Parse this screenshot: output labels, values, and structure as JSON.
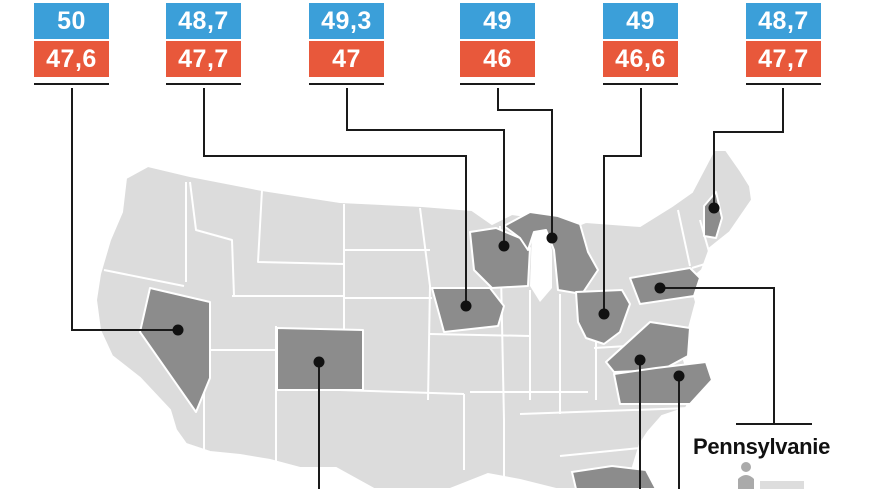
{
  "colors": {
    "blue": "#3b9fd9",
    "red": "#e8583b",
    "map_land": "#dcdcdc",
    "map_border": "#ffffff",
    "highlight_state": "#8c8c8c",
    "leader_line": "#1a1a1a"
  },
  "cards": [
    {
      "blue": "50",
      "red": "47,6"
    },
    {
      "blue": "48,7",
      "red": "47,7"
    },
    {
      "blue": "49,3",
      "red": "47"
    },
    {
      "blue": "49",
      "red": "46"
    },
    {
      "blue": "49",
      "red": "46,6"
    },
    {
      "blue": "48,7",
      "red": "47,7"
    }
  ],
  "callout": {
    "label": "Pennsylvanie"
  }
}
